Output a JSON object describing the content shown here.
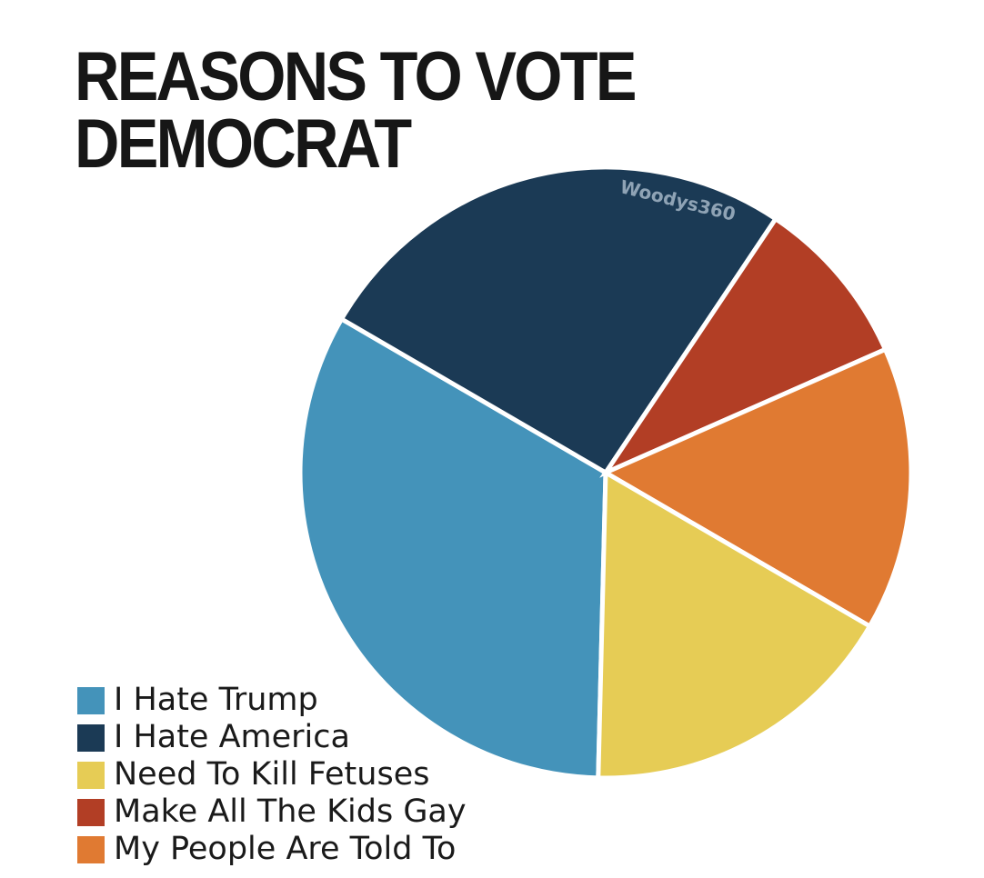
{
  "chart_data": {
    "type": "pie",
    "title": "REASONS TO VOTE DEMOCRAT",
    "watermark": "Woodys360",
    "categories": [
      "I Hate Trump",
      "I Hate America",
      "Need To Kill Fetuses",
      "Make All The Kids Gay",
      "My People Are Told To"
    ],
    "values": [
      33,
      26,
      17,
      9,
      15
    ],
    "colors": [
      "#4493ba",
      "#1b3a55",
      "#e6cc55",
      "#b23e25",
      "#e07a32"
    ],
    "legend": "bottom-left"
  }
}
